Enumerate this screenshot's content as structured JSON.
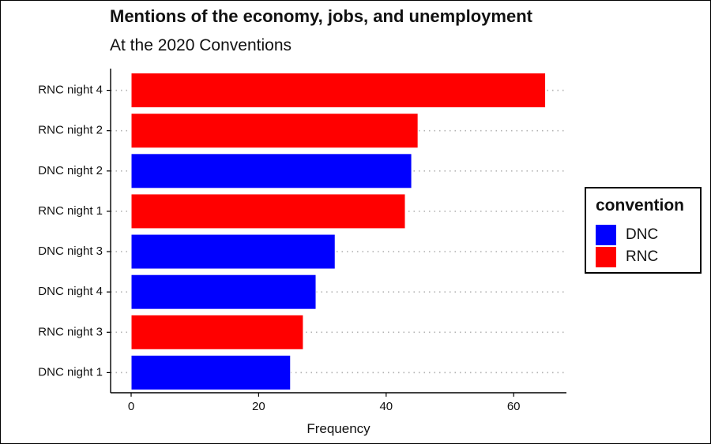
{
  "chart_data": {
    "type": "bar",
    "orientation": "horizontal",
    "title": "Mentions of the economy, jobs, and unemployment",
    "subtitle": "At the 2020 Conventions",
    "xlabel": "Frequency",
    "ylabel": "",
    "xlim": [
      0,
      68
    ],
    "xticks": [
      0,
      20,
      40,
      60
    ],
    "grid": "dotted horizontal",
    "categories": [
      "RNC night 4",
      "RNC night 2",
      "DNC night 2",
      "RNC night 1",
      "DNC night 3",
      "DNC night 4",
      "RNC night 3",
      "DNC night 1"
    ],
    "values": [
      65,
      45,
      44,
      43,
      32,
      29,
      27,
      25
    ],
    "groups": [
      "RNC",
      "RNC",
      "DNC",
      "RNC",
      "DNC",
      "DNC",
      "RNC",
      "DNC"
    ],
    "legend": {
      "title": "convention",
      "placement": "right",
      "items": [
        {
          "name": "DNC",
          "color": "#0000ff"
        },
        {
          "name": "RNC",
          "color": "#ff0000"
        }
      ]
    }
  }
}
